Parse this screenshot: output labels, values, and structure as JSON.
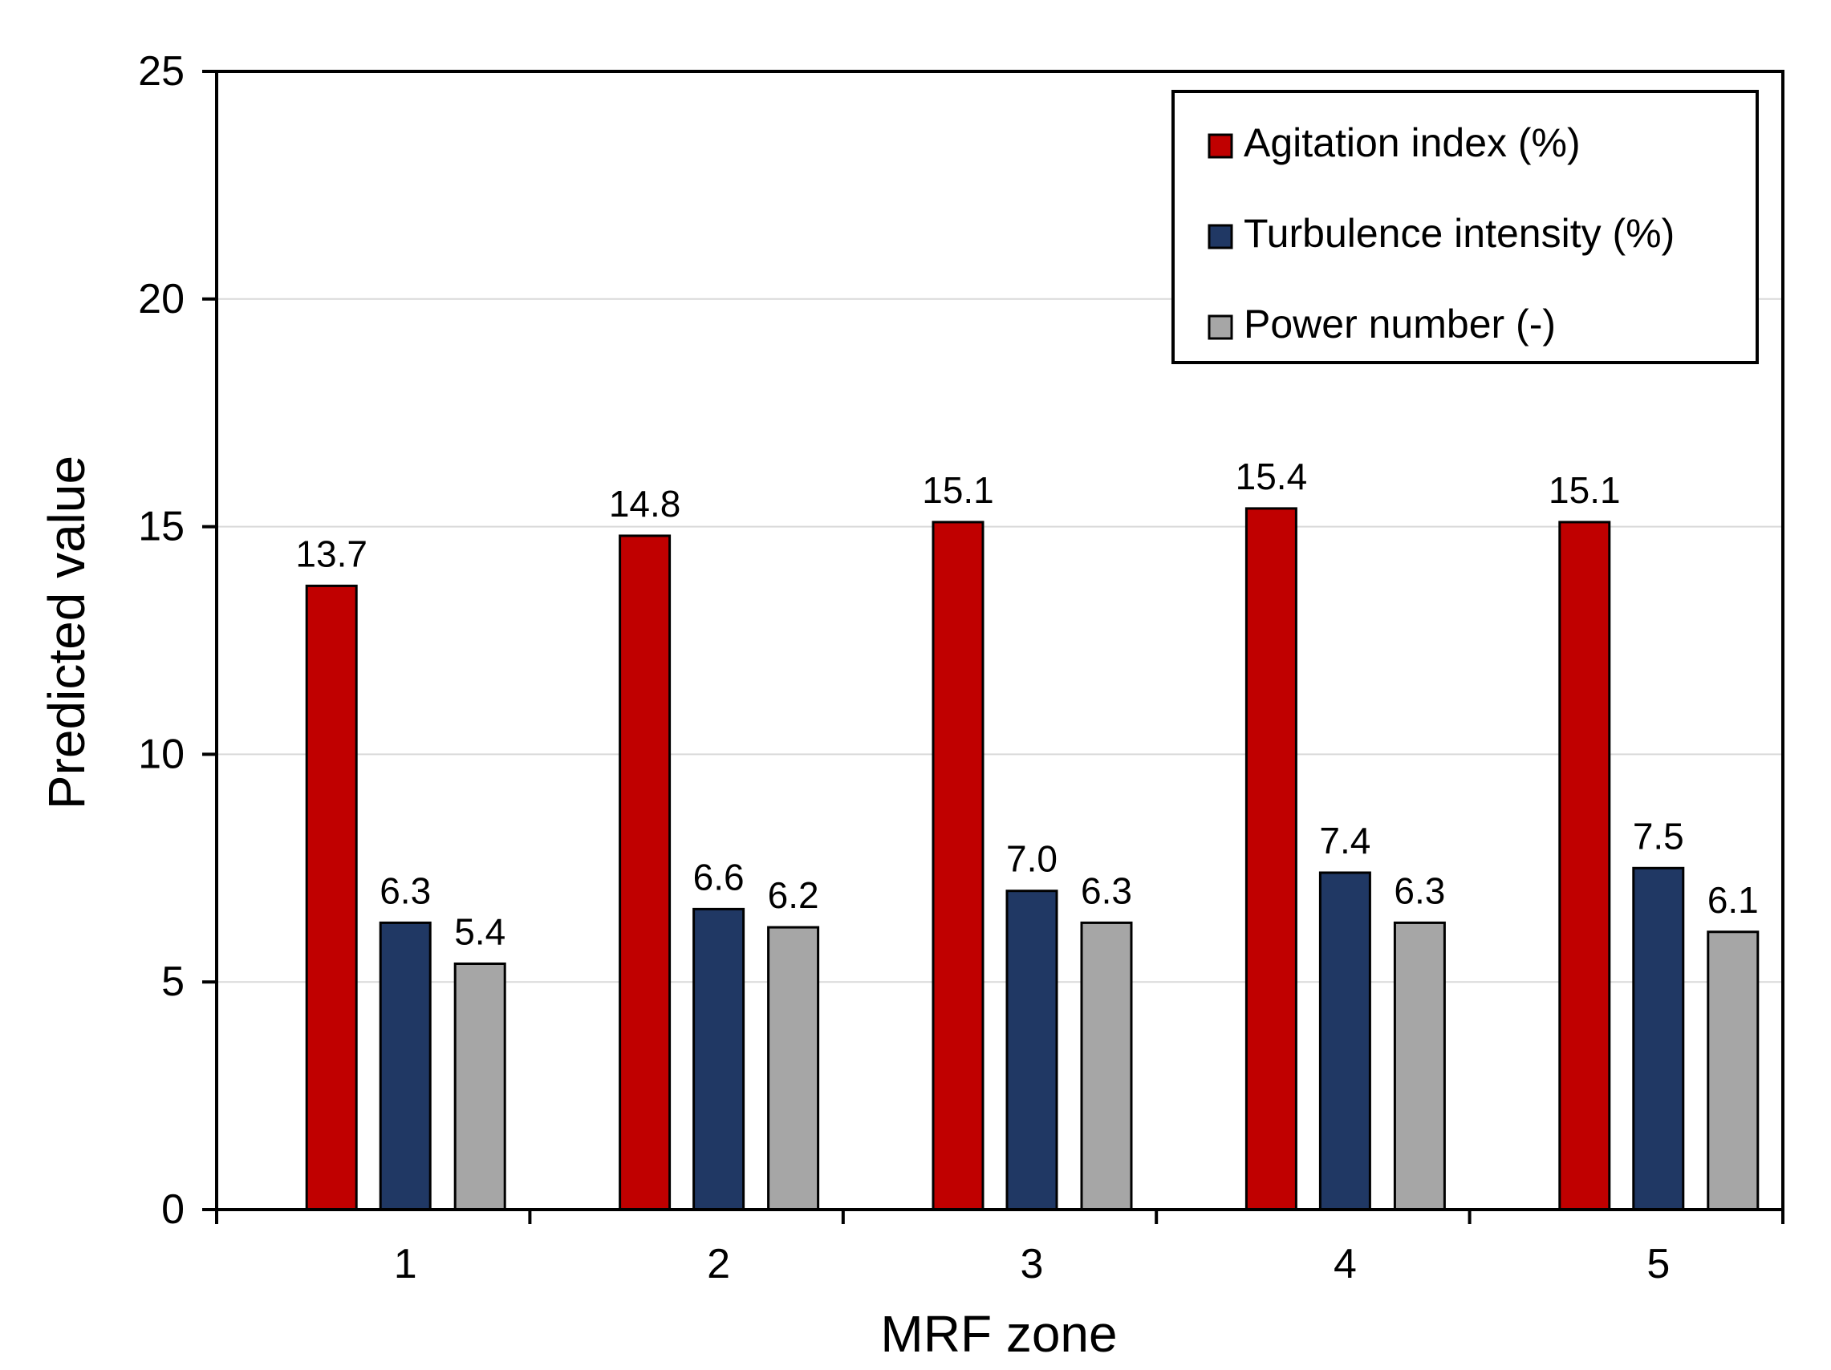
{
  "chart_data": {
    "type": "bar",
    "title": "",
    "xlabel": "MRF zone",
    "ylabel": "Predicted value",
    "categories": [
      "1",
      "2",
      "3",
      "4",
      "5"
    ],
    "ylim": [
      0,
      25
    ],
    "yticks": [
      0,
      5,
      10,
      15,
      20,
      25
    ],
    "grid": true,
    "legend_position": "top-right",
    "series": [
      {
        "name": "Agitation index (%)",
        "color": "#C00000",
        "values": [
          13.7,
          14.8,
          15.1,
          15.4,
          15.1
        ],
        "labels": [
          "13.7",
          "14.8",
          "15.1",
          "15.4",
          "15.1"
        ]
      },
      {
        "name": "Turbulence intensity (%)",
        "color": "#203864",
        "values": [
          6.3,
          6.6,
          7.0,
          7.4,
          7.5
        ],
        "labels": [
          "6.3",
          "6.6",
          "7.0",
          "7.4",
          "7.5"
        ]
      },
      {
        "name": "Power number (-)",
        "color": "#A6A6A6",
        "values": [
          5.4,
          6.2,
          6.3,
          6.3,
          6.1
        ],
        "labels": [
          "5.4",
          "6.2",
          "6.3",
          "6.3",
          "6.1"
        ]
      }
    ]
  }
}
